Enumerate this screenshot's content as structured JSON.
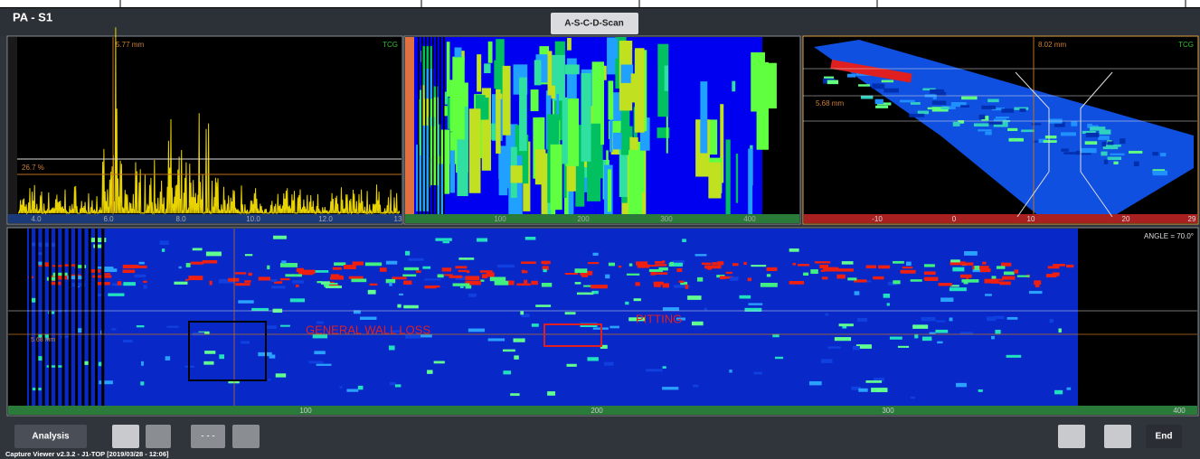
{
  "header": {
    "title": "PA - S1",
    "tab": "A-S-C-D-Scan"
  },
  "ascan": {
    "cursor": "5.77 mm",
    "tcg": "TCG",
    "gate": "26.7 %",
    "axis": [
      "4.0",
      "6.0",
      "8.0",
      "10.0",
      "12.0",
      "13"
    ]
  },
  "cscan": {
    "axis": [
      "100",
      "200",
      "300",
      "400"
    ]
  },
  "sscan": {
    "cursor": "8.02 mm",
    "depth": "5.68 mm",
    "tcg": "TCG",
    "axis": [
      "-10",
      "0",
      "10",
      "20",
      "29"
    ]
  },
  "dscan": {
    "angle": "ANGLE = 70.0°",
    "depth": "5.68 mm",
    "annotations": [
      "GENERAL WALL LOSS",
      "PITTING"
    ],
    "axis": [
      "100",
      "200",
      "300",
      "400"
    ]
  },
  "toolbar": {
    "analysis": "Analysis",
    "nav": "- - -",
    "end": "End",
    "status": "Capture Viewer v2.3.2 - J1-TOP [2019/03/28 - 12:06]"
  }
}
